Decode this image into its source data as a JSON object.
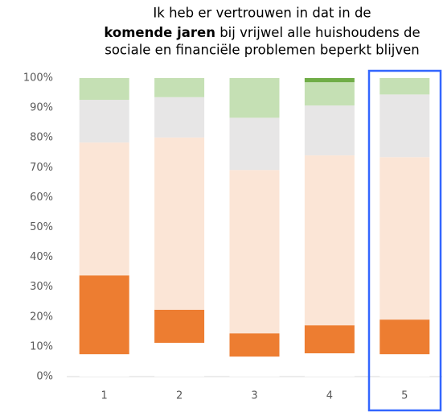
{
  "chart_data": {
    "type": "stacked_bar",
    "title": [
      "Ik heb er vertrouwen in dat in de",
      "komende jaren",
      " bij vrijwel alle huishoudens de",
      "sociale en financiële problemen beperkt blijven"
    ],
    "categories": [
      "1",
      "2",
      "3",
      "4",
      "5"
    ],
    "series": [
      {
        "color": "#ffffff",
        "values": [
          7.5,
          11.3,
          6.7,
          7.8,
          7.5
        ]
      },
      {
        "color": "#ed7d31",
        "values": [
          26.4,
          11.1,
          7.8,
          9.4,
          11.6
        ]
      },
      {
        "color": "#fbe5d6",
        "values": [
          44.5,
          57.7,
          54.7,
          56.9,
          54.4
        ]
      },
      {
        "color": "#e7e6e6",
        "values": [
          14.3,
          13.5,
          17.5,
          16.7,
          21.0
        ]
      },
      {
        "color": "#c5e0b4",
        "values": [
          7.3,
          6.4,
          13.3,
          7.8,
          5.5
        ]
      },
      {
        "color": "#70ad47",
        "values": [
          0,
          0,
          0,
          1.4,
          0
        ]
      }
    ],
    "ylim": [
      0,
      100
    ],
    "yticks": [
      {
        "value": 0,
        "label": "0%"
      },
      {
        "value": 10,
        "label": "10%"
      },
      {
        "value": 20,
        "label": "20%"
      },
      {
        "value": 30,
        "label": "30%"
      },
      {
        "value": 40,
        "label": "40%"
      },
      {
        "value": 50,
        "label": "50%"
      },
      {
        "value": 60,
        "label": "60%"
      },
      {
        "value": 70,
        "label": "70%"
      },
      {
        "value": 80,
        "label": "80%"
      },
      {
        "value": 90,
        "label": "90%"
      },
      {
        "value": 100,
        "label": "100%"
      }
    ]
  }
}
